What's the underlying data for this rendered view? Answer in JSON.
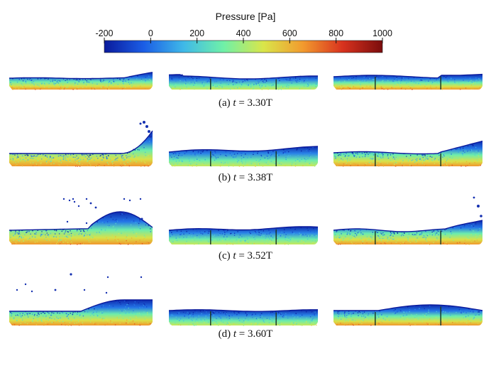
{
  "colorbar": {
    "title": "Pressure [Pa]",
    "ticks": [
      "-200",
      "0",
      "200",
      "400",
      "600",
      "800",
      "1000"
    ],
    "range": [
      -200,
      1000
    ],
    "colormap": [
      "#0a1a9c",
      "#1b5ee6",
      "#3fb9e8",
      "#6ff0a8",
      "#d9e64a",
      "#f29a2e",
      "#d8321e",
      "#7a0d0d"
    ]
  },
  "panels": [
    {
      "label": "(a)",
      "var": "t",
      "value": "= 3.30T"
    },
    {
      "label": "(b)",
      "var": "t",
      "value": "= 3.38T"
    },
    {
      "label": "(c)",
      "var": "t",
      "value": "= 3.52T"
    },
    {
      "label": "(d)",
      "var": "t",
      "value": "= 3.60T"
    }
  ]
}
